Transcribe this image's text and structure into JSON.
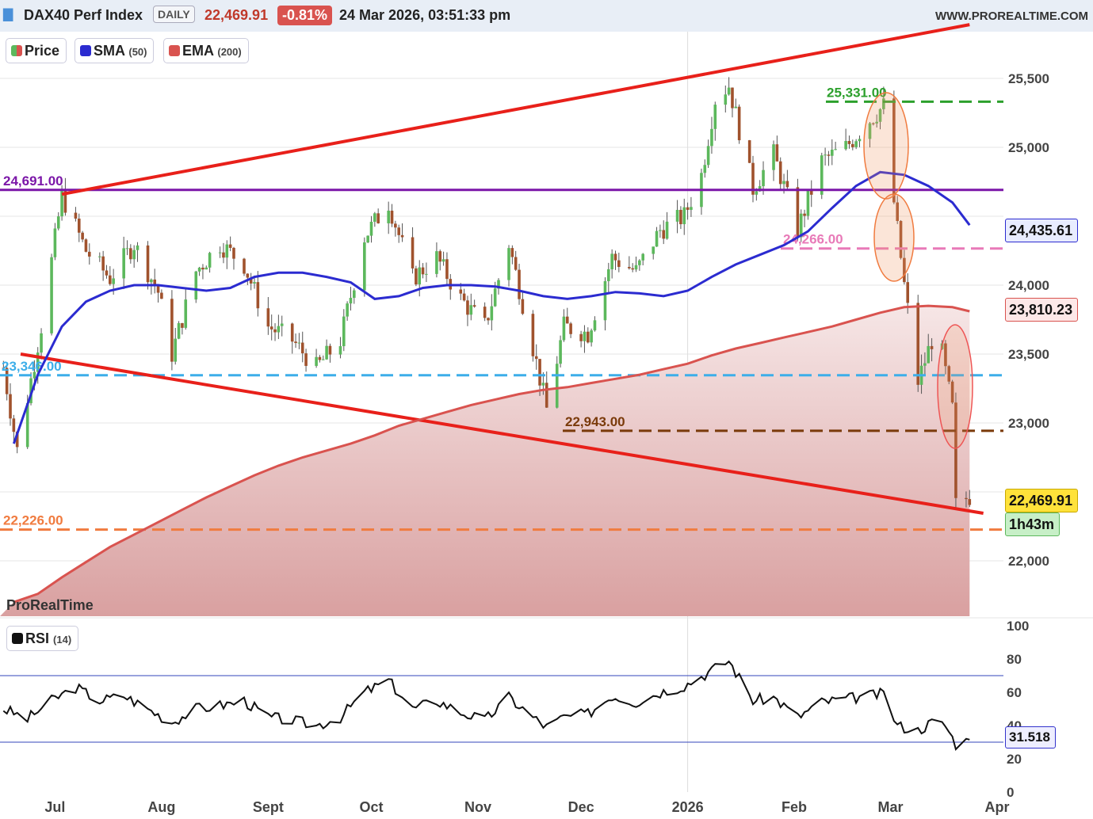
{
  "header": {
    "instrument": "DAX40 Perf Index",
    "period": "DAILY",
    "price": "22,469.91",
    "change": "-0.81%",
    "datetime": "24 Mar 2026, 03:51:33 pm",
    "site": "WWW.PROREALTIME.COM"
  },
  "legend": {
    "price_label": "Price",
    "sma_label": "SMA",
    "sma_param": "(50)",
    "ema_label": "EMA",
    "ema_param": "(200)",
    "rsi_label": "RSI",
    "rsi_param": "(14)"
  },
  "watermark": "ProRealTime",
  "price_tag": "22,469.91",
  "countdown_tag": "1h43m",
  "sma_tag": "24,435.61",
  "ema_tag": "23,810.23",
  "rsi_tag": "31.518",
  "colors": {
    "up_candle": "#5cb85c",
    "down_candle": "#a0522d",
    "sma": "#2b2bd0",
    "ema": "#d9534f",
    "trendline": "#e8201a",
    "header_bg": "#e8eef6"
  },
  "levels": [
    {
      "value": 24691.0,
      "label": "24,691.00",
      "color": "#7b16a8",
      "style": "solid"
    },
    {
      "value": 25331.0,
      "label": "25,331.00",
      "color": "#2ca02c",
      "style": "dashed"
    },
    {
      "value": 24266.0,
      "label": "24,266.00",
      "color": "#e87ab8",
      "style": "dashed"
    },
    {
      "value": 23346.0,
      "label": "23,346.00",
      "color": "#3daee9",
      "style": "dashed"
    },
    {
      "value": 22943.0,
      "label": "22,943.00",
      "color": "#7a3a0a",
      "style": "dashed"
    },
    {
      "value": 22226.0,
      "label": "22,226.00",
      "color": "#f07b3f",
      "style": "dashed"
    }
  ],
  "chart_data": [
    {
      "type": "candlestick",
      "title": "DAX40 Perf Index",
      "ylim": [
        21750,
        25850
      ],
      "y_ticks": [
        22000,
        22500,
        23000,
        23500,
        24000,
        24500,
        25000,
        25500
      ],
      "y_tick_labels": [
        "22,000",
        "",
        "23,000",
        "23,500",
        "24,000",
        "",
        "25,000",
        "25,500"
      ],
      "x_ticks": [
        "Jul",
        "Aug",
        "Sept",
        "Oct",
        "Nov",
        "Dec",
        "2026",
        "Feb",
        "Mar",
        "Apr"
      ],
      "last_price": 22469.91,
      "series": [
        {
          "name": "SMA",
          "param": 50,
          "last": 24435.61,
          "points": [
            [
              "2025-06-19",
              22850
            ],
            [
              "2025-06-26",
              23350
            ],
            [
              "2025-07-03",
              23700
            ],
            [
              "2025-07-10",
              23880
            ],
            [
              "2025-07-17",
              23960
            ],
            [
              "2025-07-24",
              24000
            ],
            [
              "2025-07-31",
              24000
            ],
            [
              "2025-08-07",
              23980
            ],
            [
              "2025-08-14",
              23960
            ],
            [
              "2025-08-21",
              23980
            ],
            [
              "2025-08-28",
              24060
            ],
            [
              "2025-09-04",
              24090
            ],
            [
              "2025-09-11",
              24090
            ],
            [
              "2025-09-18",
              24060
            ],
            [
              "2025-09-25",
              24020
            ],
            [
              "2025-10-02",
              23900
            ],
            [
              "2025-10-09",
              23920
            ],
            [
              "2025-10-16",
              23980
            ],
            [
              "2025-10-23",
              24000
            ],
            [
              "2025-10-30",
              24000
            ],
            [
              "2025-11-06",
              23990
            ],
            [
              "2025-11-13",
              23960
            ],
            [
              "2025-11-20",
              23920
            ],
            [
              "2025-11-27",
              23900
            ],
            [
              "2025-12-04",
              23920
            ],
            [
              "2025-12-11",
              23950
            ],
            [
              "2025-12-18",
              23940
            ],
            [
              "2025-12-25",
              23920
            ],
            [
              "2026-01-01",
              23960
            ],
            [
              "2026-01-08",
              24060
            ],
            [
              "2026-01-15",
              24150
            ],
            [
              "2026-01-22",
              24220
            ],
            [
              "2026-01-29",
              24290
            ],
            [
              "2026-02-05",
              24390
            ],
            [
              "2026-02-12",
              24560
            ],
            [
              "2026-02-19",
              24720
            ],
            [
              "2026-02-26",
              24820
            ],
            [
              "2026-03-05",
              24800
            ],
            [
              "2026-03-12",
              24720
            ],
            [
              "2026-03-19",
              24600
            ],
            [
              "2026-03-24",
              24435.61
            ]
          ]
        },
        {
          "name": "EMA",
          "param": 200,
          "last": 23810.23,
          "points": [
            [
              "2025-06-19",
              21700
            ],
            [
              "2025-06-26",
              21760
            ],
            [
              "2025-07-03",
              21880
            ],
            [
              "2025-07-10",
              21990
            ],
            [
              "2025-07-17",
              22100
            ],
            [
              "2025-07-24",
              22190
            ],
            [
              "2025-07-31",
              22280
            ],
            [
              "2025-08-07",
              22370
            ],
            [
              "2025-08-14",
              22460
            ],
            [
              "2025-08-21",
              22540
            ],
            [
              "2025-08-28",
              22620
            ],
            [
              "2025-09-04",
              22690
            ],
            [
              "2025-09-11",
              22750
            ],
            [
              "2025-09-18",
              22800
            ],
            [
              "2025-09-25",
              22850
            ],
            [
              "2025-10-02",
              22910
            ],
            [
              "2025-10-09",
              22980
            ],
            [
              "2025-10-16",
              23030
            ],
            [
              "2025-10-23",
              23080
            ],
            [
              "2025-10-30",
              23130
            ],
            [
              "2025-11-06",
              23170
            ],
            [
              "2025-11-13",
              23210
            ],
            [
              "2025-11-20",
              23240
            ],
            [
              "2025-11-27",
              23260
            ],
            [
              "2025-12-04",
              23290
            ],
            [
              "2025-12-11",
              23320
            ],
            [
              "2025-12-18",
              23350
            ],
            [
              "2025-12-25",
              23390
            ],
            [
              "2026-01-01",
              23430
            ],
            [
              "2026-01-08",
              23490
            ],
            [
              "2026-01-15",
              23540
            ],
            [
              "2026-01-22",
              23580
            ],
            [
              "2026-01-29",
              23620
            ],
            [
              "2026-02-05",
              23660
            ],
            [
              "2026-02-12",
              23700
            ],
            [
              "2026-02-19",
              23750
            ],
            [
              "2026-02-26",
              23800
            ],
            [
              "2026-03-05",
              23840
            ],
            [
              "2026-03-12",
              23850
            ],
            [
              "2026-03-19",
              23840
            ],
            [
              "2026-03-24",
              23810.23
            ]
          ]
        }
      ],
      "trendlines": [
        {
          "from": [
            "2025-07-03",
            24660
          ],
          "to": [
            "2026-03-24",
            25890
          ],
          "color": "#e8201a"
        },
        {
          "from": [
            "2025-06-21",
            23500
          ],
          "to": [
            "2026-03-28",
            22345
          ],
          "color": "#e8201a"
        }
      ],
      "candles_sampled_close": [
        [
          "2025-06-16",
          23400
        ],
        [
          "2025-06-20",
          22800
        ],
        [
          "2025-06-27",
          23700
        ],
        [
          "2025-07-03",
          24650
        ],
        [
          "2025-07-10",
          24250
        ],
        [
          "2025-07-17",
          24050
        ],
        [
          "2025-07-24",
          24300
        ],
        [
          "2025-07-31",
          23950
        ],
        [
          "2025-08-04",
          23500
        ],
        [
          "2025-08-11",
          24100
        ],
        [
          "2025-08-18",
          24300
        ],
        [
          "2025-08-25",
          24150
        ],
        [
          "2025-09-01",
          23700
        ],
        [
          "2025-09-08",
          23600
        ],
        [
          "2025-09-15",
          23400
        ],
        [
          "2025-09-22",
          23600
        ],
        [
          "2025-09-29",
          24350
        ],
        [
          "2025-10-06",
          24600
        ],
        [
          "2025-10-13",
          24050
        ],
        [
          "2025-10-20",
          24200
        ],
        [
          "2025-10-27",
          23900
        ],
        [
          "2025-11-03",
          23700
        ],
        [
          "2025-11-10",
          24300
        ],
        [
          "2025-11-17",
          23550
        ],
        [
          "2025-11-21",
          23100
        ],
        [
          "2025-11-26",
          23700
        ],
        [
          "2025-12-03",
          23650
        ],
        [
          "2025-12-10",
          24200
        ],
        [
          "2025-12-17",
          24100
        ],
        [
          "2025-12-24",
          24400
        ],
        [
          "2025-12-31",
          24500
        ],
        [
          "2026-01-05",
          24800
        ],
        [
          "2026-01-09",
          25350
        ],
        [
          "2026-01-13",
          25450
        ],
        [
          "2026-01-20",
          24700
        ],
        [
          "2026-01-26",
          24950
        ],
        [
          "2026-02-02",
          24400
        ],
        [
          "2026-02-09",
          24900
        ],
        [
          "2026-02-16",
          25000
        ],
        [
          "2026-02-23",
          25200
        ],
        [
          "2026-02-27",
          25300
        ],
        [
          "2026-03-02",
          24600
        ],
        [
          "2026-03-05",
          24000
        ],
        [
          "2026-03-09",
          23300
        ],
        [
          "2026-03-13",
          23600
        ],
        [
          "2026-03-16",
          23500
        ],
        [
          "2026-03-19",
          23100
        ],
        [
          "2026-03-20",
          22400
        ],
        [
          "2026-03-24",
          22469.91
        ]
      ]
    },
    {
      "type": "line",
      "title": "RSI",
      "param": 14,
      "ylim": [
        0,
        100
      ],
      "y_ticks": [
        0,
        20,
        40,
        60,
        80,
        100
      ],
      "y_tick_labels": [
        "0",
        "20",
        "40",
        "60",
        "80",
        "100"
      ],
      "bands": [
        30,
        70
      ],
      "last": 31.518,
      "points": [
        [
          "2025-06-16",
          50
        ],
        [
          "2025-06-23",
          44
        ],
        [
          "2025-06-30",
          55
        ],
        [
          "2025-07-07",
          63
        ],
        [
          "2025-07-14",
          55
        ],
        [
          "2025-07-21",
          58
        ],
        [
          "2025-07-28",
          50
        ],
        [
          "2025-08-04",
          42
        ],
        [
          "2025-08-11",
          50
        ],
        [
          "2025-08-18",
          52
        ],
        [
          "2025-08-25",
          55
        ],
        [
          "2025-09-01",
          45
        ],
        [
          "2025-09-08",
          43
        ],
        [
          "2025-09-15",
          40
        ],
        [
          "2025-09-22",
          45
        ],
        [
          "2025-09-29",
          60
        ],
        [
          "2025-10-06",
          67
        ],
        [
          "2025-10-13",
          50
        ],
        [
          "2025-10-20",
          55
        ],
        [
          "2025-10-27",
          48
        ],
        [
          "2025-11-03",
          43
        ],
        [
          "2025-11-10",
          57
        ],
        [
          "2025-11-17",
          45
        ],
        [
          "2025-11-21",
          39
        ],
        [
          "2025-11-26",
          45
        ],
        [
          "2025-12-03",
          47
        ],
        [
          "2025-12-10",
          58
        ],
        [
          "2025-12-17",
          54
        ],
        [
          "2025-12-24",
          60
        ],
        [
          "2025-12-31",
          64
        ],
        [
          "2026-01-07",
          72
        ],
        [
          "2026-01-13",
          79
        ],
        [
          "2026-01-20",
          55
        ],
        [
          "2026-01-26",
          57
        ],
        [
          "2026-02-02",
          45
        ],
        [
          "2026-02-09",
          54
        ],
        [
          "2026-02-16",
          56
        ],
        [
          "2026-02-23",
          58
        ],
        [
          "2026-02-27",
          59
        ],
        [
          "2026-03-03",
          40
        ],
        [
          "2026-03-09",
          37
        ],
        [
          "2026-03-13",
          42
        ],
        [
          "2026-03-17",
          40
        ],
        [
          "2026-03-20",
          29
        ],
        [
          "2026-03-24",
          31.518
        ]
      ]
    }
  ]
}
